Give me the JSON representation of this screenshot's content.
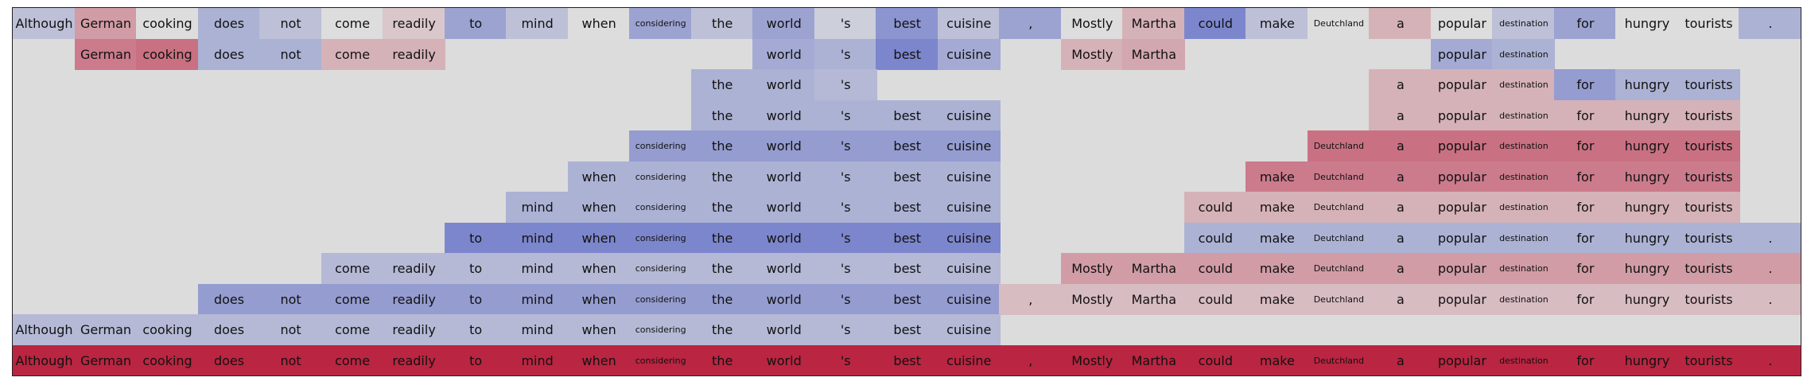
{
  "chart_data": {
    "type": "heatmap",
    "title": "",
    "xlabel": "",
    "ylabel": "",
    "color_scale": {
      "name": "coolwarm",
      "range": [
        -1,
        1
      ],
      "stops": [
        "#3b4cc0",
        "#dddddd",
        "#b40426"
      ]
    },
    "tokens": [
      "Although",
      "German",
      "cooking",
      "does",
      "not",
      "come",
      "readily",
      "to",
      "mind",
      "when",
      "considering",
      "the",
      "world",
      "'s",
      "best",
      "cuisine",
      ",",
      "Mostly",
      "Martha",
      "could",
      "make",
      "Deutchland",
      "a",
      "popular",
      "destination",
      "for",
      "hungry",
      "tourists",
      "."
    ],
    "small_tokens": [
      "considering",
      "destination",
      "Deutchland"
    ],
    "rows": [
      {
        "values": [
          -0.2,
          0.3,
          0.0,
          -0.3,
          -0.2,
          0.0,
          0.1,
          -0.4,
          -0.2,
          0.0,
          -0.4,
          -0.2,
          -0.4,
          -0.1,
          -0.5,
          -0.2,
          -0.4,
          0.0,
          0.2,
          -0.6,
          -0.2,
          0.0,
          0.2,
          0.0,
          -0.2,
          -0.4,
          0.0,
          0.0,
          -0.3
        ]
      },
      {
        "values": [
          null,
          0.45,
          0.5,
          -0.3,
          -0.3,
          0.2,
          0.2,
          null,
          null,
          null,
          null,
          null,
          -0.35,
          -0.3,
          -0.6,
          -0.35,
          null,
          0.2,
          0.25,
          null,
          null,
          null,
          null,
          -0.35,
          -0.3,
          null,
          null,
          null,
          null
        ]
      },
      {
        "values": [
          null,
          null,
          null,
          null,
          null,
          null,
          null,
          null,
          null,
          null,
          null,
          -0.3,
          -0.3,
          -0.25,
          null,
          null,
          null,
          null,
          null,
          null,
          null,
          null,
          0.2,
          0.2,
          0.2,
          -0.45,
          -0.3,
          -0.3,
          null
        ]
      },
      {
        "values": [
          null,
          null,
          null,
          null,
          null,
          null,
          null,
          null,
          null,
          null,
          null,
          -0.3,
          -0.3,
          -0.3,
          -0.3,
          -0.3,
          null,
          null,
          null,
          null,
          null,
          null,
          0.2,
          0.2,
          0.2,
          0.2,
          0.2,
          0.2,
          null
        ]
      },
      {
        "values": [
          null,
          null,
          null,
          null,
          null,
          null,
          null,
          null,
          null,
          null,
          -0.45,
          -0.45,
          -0.45,
          -0.45,
          -0.45,
          -0.45,
          null,
          null,
          null,
          null,
          null,
          0.5,
          0.5,
          0.5,
          0.5,
          0.5,
          0.5,
          0.5,
          null
        ]
      },
      {
        "values": [
          null,
          null,
          null,
          null,
          null,
          null,
          null,
          null,
          null,
          -0.3,
          -0.3,
          -0.3,
          -0.3,
          -0.3,
          -0.3,
          -0.3,
          null,
          null,
          null,
          null,
          0.45,
          0.45,
          0.45,
          0.45,
          0.45,
          0.45,
          0.45,
          0.45,
          null
        ]
      },
      {
        "values": [
          null,
          null,
          null,
          null,
          null,
          null,
          null,
          null,
          -0.3,
          -0.3,
          -0.3,
          -0.3,
          -0.3,
          -0.3,
          -0.3,
          -0.3,
          null,
          null,
          null,
          0.2,
          0.2,
          0.2,
          0.2,
          0.2,
          0.2,
          0.2,
          0.2,
          0.2,
          null
        ]
      },
      {
        "values": [
          null,
          null,
          null,
          null,
          null,
          null,
          null,
          -0.6,
          -0.6,
          -0.6,
          -0.6,
          -0.6,
          -0.6,
          -0.6,
          -0.6,
          -0.6,
          null,
          null,
          null,
          -0.3,
          -0.3,
          -0.3,
          -0.3,
          -0.3,
          -0.3,
          -0.3,
          -0.3,
          -0.3,
          -0.3
        ]
      },
      {
        "values": [
          null,
          null,
          null,
          null,
          null,
          -0.25,
          -0.25,
          -0.25,
          -0.25,
          -0.25,
          -0.25,
          -0.25,
          -0.25,
          -0.25,
          -0.25,
          -0.25,
          null,
          0.3,
          0.3,
          0.3,
          0.3,
          0.3,
          0.3,
          0.3,
          0.3,
          0.3,
          0.3,
          0.3,
          0.3
        ]
      },
      {
        "values": [
          null,
          null,
          null,
          -0.45,
          -0.45,
          -0.45,
          -0.45,
          -0.45,
          -0.45,
          -0.45,
          -0.45,
          -0.45,
          -0.45,
          -0.45,
          -0.45,
          -0.45,
          0.15,
          0.15,
          0.15,
          0.15,
          0.15,
          0.15,
          0.15,
          0.15,
          0.15,
          0.15,
          0.15,
          0.15,
          0.15
        ]
      },
      {
        "values": [
          -0.25,
          -0.25,
          -0.25,
          -0.25,
          -0.25,
          -0.25,
          -0.25,
          -0.25,
          -0.25,
          -0.25,
          -0.25,
          -0.25,
          -0.25,
          -0.25,
          -0.25,
          -0.25,
          null,
          null,
          null,
          null,
          null,
          null,
          null,
          null,
          null,
          null,
          null,
          null,
          null
        ]
      },
      {
        "values": [
          0.85,
          0.85,
          0.85,
          0.85,
          0.85,
          0.85,
          0.85,
          0.85,
          0.85,
          0.85,
          0.85,
          0.85,
          0.85,
          0.85,
          0.85,
          0.85,
          0.85,
          0.85,
          0.85,
          0.85,
          0.85,
          0.85,
          0.85,
          0.85,
          0.85,
          0.85,
          0.85,
          0.85,
          0.85
        ]
      }
    ]
  }
}
